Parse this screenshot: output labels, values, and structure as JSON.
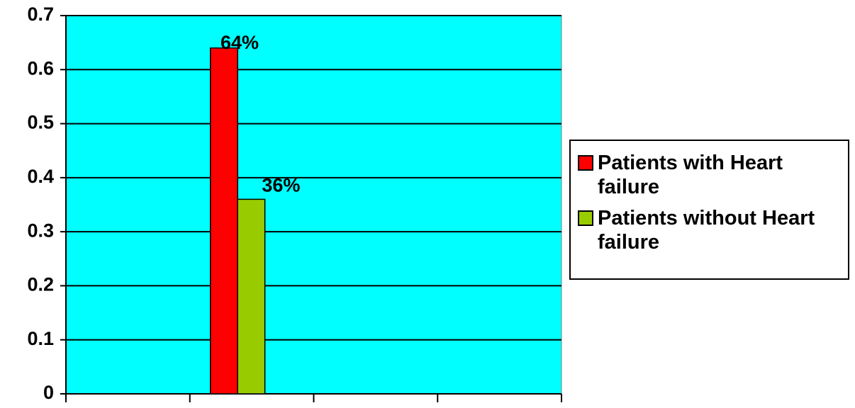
{
  "chart_data": {
    "type": "bar",
    "categories": [
      null,
      null,
      null,
      null
    ],
    "series": [
      {
        "name": "Patients with Heart failure",
        "color": "#ff0000",
        "values": [
          null,
          0.64,
          null,
          null
        ],
        "value_labels": [
          null,
          "64%",
          null,
          null
        ]
      },
      {
        "name": "Patients without Heart failure",
        "color": "#99cc00",
        "values": [
          null,
          0.36,
          null,
          null
        ],
        "value_labels": [
          null,
          "36%",
          null,
          null
        ]
      }
    ],
    "ylim": [
      0,
      0.7
    ],
    "yticks": [
      0,
      0.1,
      0.2,
      0.3,
      0.4,
      0.5,
      0.6,
      0.7
    ],
    "grid": true,
    "plot_background": "#00ffff",
    "legend": "right"
  }
}
